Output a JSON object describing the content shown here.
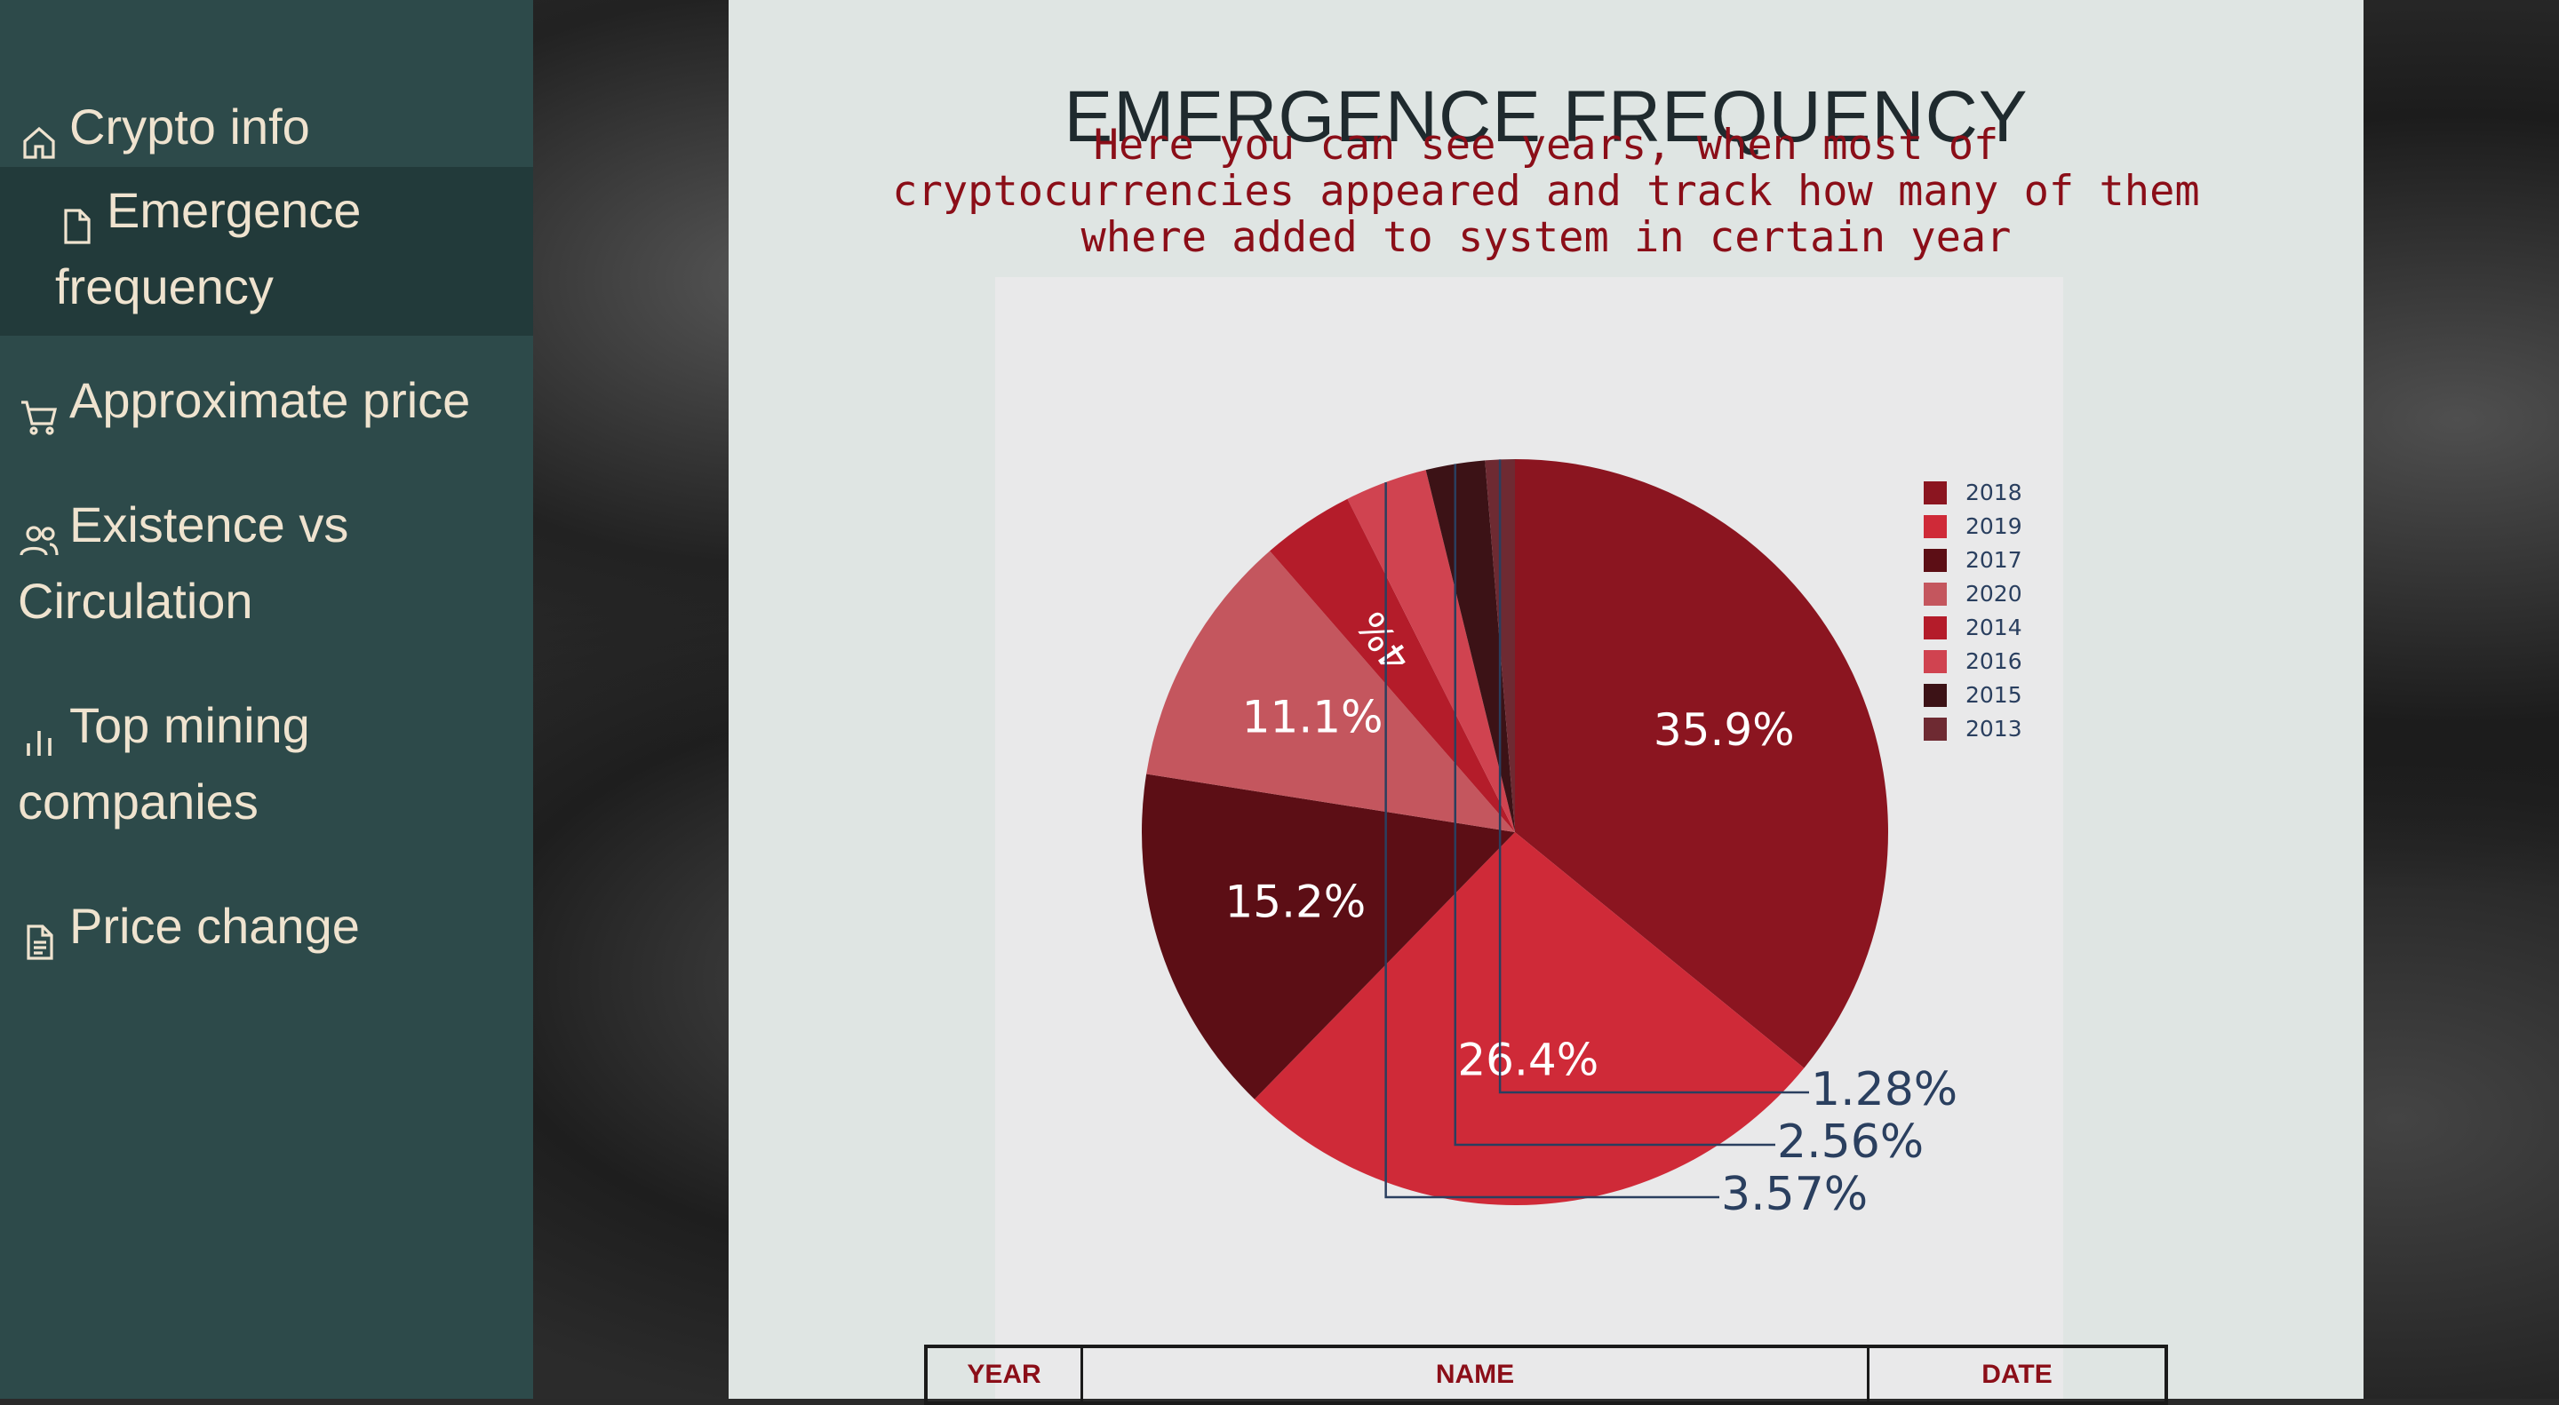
{
  "sidebar": {
    "items": [
      {
        "label": "Crypto info",
        "icon": "home-icon"
      },
      {
        "label": "Emergence frequency",
        "icon": "file-icon",
        "active": true
      },
      {
        "label": "Approximate price",
        "icon": "cart-icon"
      },
      {
        "label": "Existence vs Circulation",
        "icon": "users-icon"
      },
      {
        "label": "Top mining companies",
        "icon": "bar-chart-icon"
      },
      {
        "label": "Price change",
        "icon": "document-icon"
      }
    ]
  },
  "main": {
    "title": "EMERGENCE FREQUENCY",
    "subtitle": "Here you can see years, when most of cryptocurrencies appeared and track how many of them where added to system in certain year"
  },
  "chart_data": {
    "type": "pie",
    "categories": [
      "2018",
      "2019",
      "2017",
      "2020",
      "2014",
      "2016",
      "2015",
      "2013"
    ],
    "values": [
      35.9,
      26.4,
      15.2,
      11.1,
      4,
      3.57,
      2.56,
      1.28
    ],
    "labels": [
      "35.9%",
      "26.4%",
      "15.2%",
      "11.1%",
      "4%",
      "3.57%",
      "2.56%",
      "1.28%"
    ],
    "colors": [
      "#8b1520",
      "#cf2a38",
      "#5c0e15",
      "#c4565e",
      "#b41c2a",
      "#d04350",
      "#3c1216",
      "#6e2a32"
    ],
    "legend_position": "top-right",
    "direction": "clockwise",
    "start_angle": "12 o'clock"
  },
  "table": {
    "headers": [
      "YEAR",
      "NAME",
      "DATE"
    ]
  }
}
